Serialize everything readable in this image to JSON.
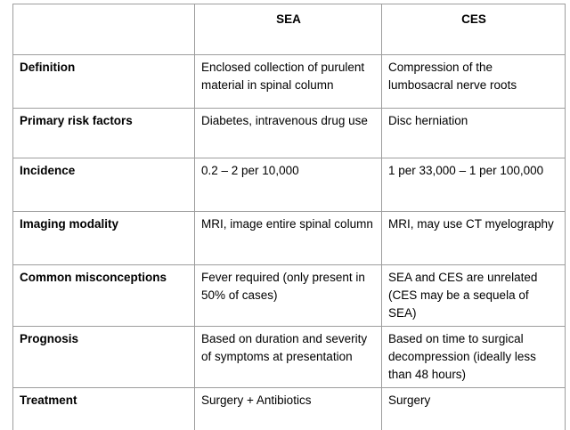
{
  "table": {
    "header": {
      "corner": "",
      "col_sea": "SEA",
      "col_ces": "CES"
    },
    "rows": [
      {
        "label": "Definition",
        "sea": "Enclosed collection of purulent material in spinal column",
        "ces": "Compression of the lumbosacral nerve roots"
      },
      {
        "label": "Primary risk factors",
        "sea": "Diabetes, intravenous drug use",
        "ces": "Disc herniation"
      },
      {
        "label": "Incidence",
        "sea": "0.2 – 2 per 10,000",
        "ces": "1 per 33,000 – 1 per 100,000"
      },
      {
        "label": "Imaging modality",
        "sea": "MRI, image entire spinal column",
        "ces": "MRI, may use CT myelography"
      },
      {
        "label": "Common misconceptions",
        "sea": "Fever required (only present in 50% of cases)",
        "ces": "SEA and CES are unrelated (CES may be a sequela of SEA)"
      },
      {
        "label": "Prognosis",
        "sea": "Based on duration and severity of symptoms at presentation",
        "ces": "Based on time to surgical decompression (ideally less than 48 hours)"
      },
      {
        "label": "Treatment",
        "sea": "Surgery + Antibiotics",
        "ces": "Surgery"
      }
    ]
  },
  "colors": {
    "border": "#9d9d9d",
    "text": "#000000",
    "background": "#ffffff"
  }
}
